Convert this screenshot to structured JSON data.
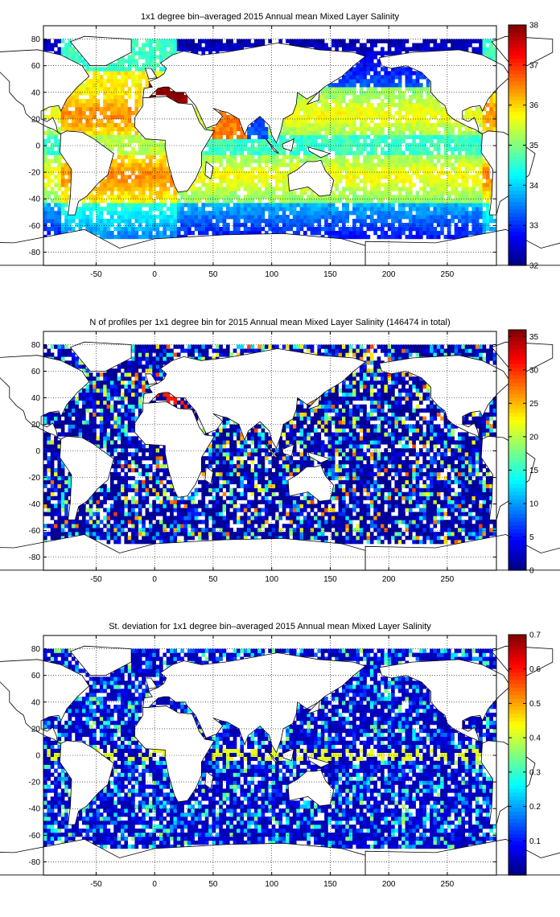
{
  "chart_data": [
    {
      "type": "heatmap",
      "title": "1x1 degree bin–averaged 2015 Annual mean Mixed Layer Salinity",
      "field": "salinity",
      "x_ticks": [
        "-50",
        "0",
        "50",
        "100",
        "150",
        "200",
        "250"
      ],
      "y_ticks": [
        "80",
        "60",
        "40",
        "20",
        "0",
        "-20",
        "-40",
        "-60",
        "-80"
      ],
      "xlim": [
        -95,
        292
      ],
      "ylim": [
        -90,
        90
      ],
      "grid": true,
      "colorbar": {
        "range": [
          32,
          38
        ],
        "ticks": [
          "32",
          "33",
          "34",
          "35",
          "36",
          "37",
          "38"
        ],
        "colormap": "jet",
        "position": "right"
      }
    },
    {
      "type": "heatmap",
      "title": "N of profiles per 1x1 degree bin for 2015 Annual mean Mixed Layer Salinity  (146474 in total)",
      "field": "count",
      "x_ticks": [
        "-50",
        "0",
        "50",
        "100",
        "150",
        "200",
        "250"
      ],
      "y_ticks": [
        "80",
        "60",
        "40",
        "20",
        "0",
        "-20",
        "-40",
        "-60",
        "-80"
      ],
      "xlim": [
        -95,
        292
      ],
      "ylim": [
        -90,
        90
      ],
      "grid": true,
      "colorbar": {
        "range": [
          0,
          36
        ],
        "ticks": [
          "0",
          "5",
          "10",
          "15",
          "20",
          "25",
          "30",
          "35"
        ],
        "colormap": "jet",
        "position": "right"
      }
    },
    {
      "type": "heatmap",
      "title": "St. deviation for 1x1 degree bin–averaged 2015 Annual mean Mixed Layer Salinity",
      "field": "stdev",
      "x_ticks": [
        "-50",
        "0",
        "50",
        "100",
        "150",
        "200",
        "250"
      ],
      "y_ticks": [
        "80",
        "60",
        "40",
        "20",
        "0",
        "-20",
        "-40",
        "-60",
        "-80"
      ],
      "xlim": [
        -95,
        292
      ],
      "ylim": [
        -90,
        90
      ],
      "grid": true,
      "colorbar": {
        "range": [
          0,
          0.7
        ],
        "ticks": [
          "0.1",
          "0.2",
          "0.3",
          "0.4",
          "0.5",
          "0.6",
          "0.7"
        ],
        "colormap": "jet",
        "position": "right"
      }
    }
  ]
}
